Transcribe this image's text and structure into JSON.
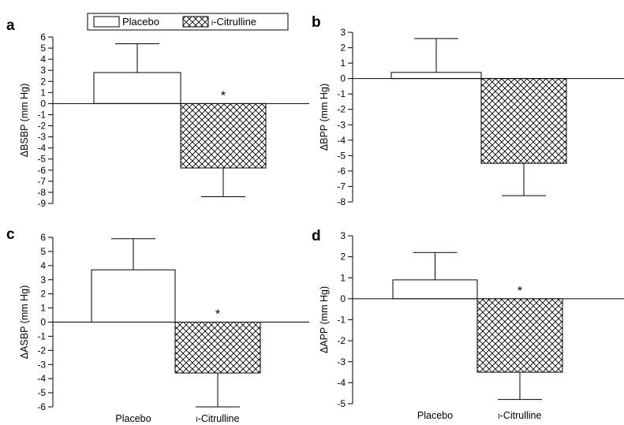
{
  "legend": {
    "placebo_label": "Placebo",
    "citrulline_label": "L-Citrulline",
    "citrulline_label_smallcap": "l",
    "citrulline_label_rest": "-Citrulline"
  },
  "chart_data": [
    {
      "type": "bar",
      "panel_label": "a",
      "ylabel": "ΔBSBP (mm Hg)",
      "categories": [
        "Placebo",
        "L-Citrulline"
      ],
      "series": [
        {
          "values": [
            2.8,
            -5.8
          ],
          "error": [
            2.6,
            2.6
          ]
        }
      ],
      "ylim": [
        -9,
        6
      ],
      "yticks": [
        6,
        5,
        4,
        3,
        2,
        1,
        0,
        -1,
        -2,
        -3,
        -4,
        -5,
        -6,
        -7,
        -8,
        -9
      ],
      "significance": [
        false,
        true
      ],
      "show_category_labels": false
    },
    {
      "type": "bar",
      "panel_label": "b",
      "ylabel": "ΔBPP (mm Hg)",
      "categories": [
        "Placebo",
        "L-Citrulline"
      ],
      "series": [
        {
          "values": [
            0.4,
            -5.5
          ],
          "error": [
            2.2,
            2.1
          ]
        }
      ],
      "ylim": [
        -8,
        3
      ],
      "yticks": [
        3,
        2,
        1,
        0,
        -1,
        -2,
        -3,
        -4,
        -5,
        -6,
        -7,
        -8
      ],
      "significance": [
        false,
        false
      ],
      "show_category_labels": false
    },
    {
      "type": "bar",
      "panel_label": "c",
      "ylabel": "ΔASBP (mm Hg)",
      "categories": [
        "Placebo",
        "L-Citrulline"
      ],
      "series": [
        {
          "values": [
            3.7,
            -3.6
          ],
          "error": [
            2.2,
            2.4
          ]
        }
      ],
      "ylim": [
        -6,
        6
      ],
      "yticks": [
        6,
        5,
        4,
        3,
        2,
        1,
        0,
        -1,
        -2,
        -3,
        -4,
        -5,
        -6
      ],
      "significance": [
        false,
        true
      ],
      "show_category_labels": true
    },
    {
      "type": "bar",
      "panel_label": "d",
      "ylabel": "ΔAPP (mm Hg)",
      "categories": [
        "Placebo",
        "L-Citrulline"
      ],
      "series": [
        {
          "values": [
            0.9,
            -3.5
          ],
          "error": [
            1.3,
            1.3
          ]
        }
      ],
      "ylim": [
        -5,
        3
      ],
      "yticks": [
        3,
        2,
        1,
        0,
        -1,
        -2,
        -3,
        -4,
        -5
      ],
      "significance": [
        false,
        true
      ],
      "show_category_labels": true
    }
  ]
}
